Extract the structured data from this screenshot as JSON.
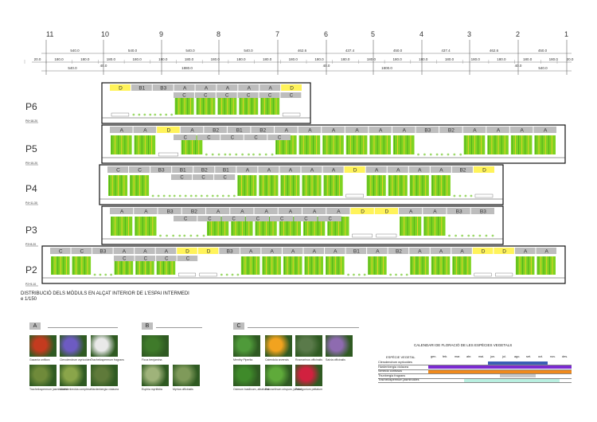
{
  "axes": [
    "11",
    "10",
    "9",
    "8",
    "7",
    "6",
    "5",
    "4",
    "3",
    "2",
    "1"
  ],
  "dims_row1": [
    "540.0",
    "540.0",
    "540.0",
    "540.0",
    "462.6",
    "437.4",
    "450.0",
    "437.4",
    "462.6",
    "450.0"
  ],
  "dims_row2": [
    "20.0",
    "180.0",
    "180.0",
    "180.0",
    "180.0",
    "180.0",
    "180.0",
    "180.0",
    "180.0",
    "180.0",
    "180.0",
    "180.0",
    "180.0",
    "180.0",
    "180.0",
    "180.0",
    "180.0",
    "180.0",
    "180.0",
    "180.0",
    "180.0",
    "20.0"
  ],
  "dims_row3": [
    "540.0",
    "40.0",
    "1880.0",
    "40.0",
    "1800.0",
    "40.0",
    "540.0"
  ],
  "floors": [
    {
      "label": "P6",
      "level": "P6+18.20",
      "modules": [
        "D",
        "B1",
        "B3",
        "A",
        "A",
        "A",
        "A",
        "A",
        "D"
      ],
      "sub": [
        "C",
        "C",
        "C",
        "C",
        "C",
        "C"
      ]
    },
    {
      "label": "P5",
      "level": "P5+15.20",
      "modules": [
        "A",
        "A",
        "D",
        "A",
        "B2",
        "B1",
        "B2",
        "A",
        "A",
        "A",
        "A",
        "A",
        "A",
        "B3",
        "B2",
        "A",
        "A",
        "A",
        "A"
      ],
      "sub": [
        "C",
        "C",
        "C",
        "C",
        "C"
      ]
    },
    {
      "label": "P4",
      "level": "P4+11.30",
      "modules": [
        "C",
        "C",
        "B3",
        "B1",
        "B2",
        "B1",
        "A",
        "A",
        "A",
        "A",
        "A",
        "D",
        "A",
        "A",
        "A",
        "A",
        "B2",
        "D"
      ],
      "sub": [
        "C",
        "C",
        "C"
      ]
    },
    {
      "label": "P3",
      "level": "P3+8.20",
      "modules": [
        "A",
        "A",
        "B3",
        "B2",
        "A",
        "A",
        "A",
        "A",
        "A",
        "A",
        "D",
        "D",
        "A",
        "A",
        "B3",
        "B3"
      ],
      "sub": [
        "C",
        "C",
        "C",
        "C",
        "C",
        "C",
        "C"
      ]
    },
    {
      "label": "P2",
      "level": "P2+5.10",
      "modules": [
        "C",
        "C",
        "B3",
        "A",
        "A",
        "A",
        "D",
        "D",
        "B3",
        "A",
        "A",
        "A",
        "A",
        "A",
        "B1",
        "A",
        "B2",
        "A",
        "A",
        "A",
        "D",
        "D",
        "A",
        "A"
      ],
      "sub": [
        "C",
        "C",
        "C",
        "C"
      ]
    }
  ],
  "caption_line1": "DISTRIBUCIÓ DELS MÒDULS EN ALÇAT INTERIOR DE L'ESPAI INTERMEDI",
  "caption_line2": "e 1/150",
  "legend_groups": [
    {
      "letter": "A",
      "plants": [
        "Gazania uniflora",
        "Clerodendrum wyricoides",
        "Trachelospermum jasminoides",
        "Muehlenbeckia complexa",
        "Hardenbergia violacea",
        "Trachelospermum fragrans"
      ]
    },
    {
      "letter": "B",
      "plants": [
        "Ficus benjamina",
        "Euphia myrtifolia",
        "Myrtus officinalis"
      ]
    },
    {
      "letter": "C",
      "plants": [
        "Menthy Piperita",
        "Calendula arvensis",
        "Rosmarinus officinalis",
        "Salvia officinalis",
        "Ocimum basilicum, albahaca",
        "Petroselinum crispum, julivert",
        "Pelargonium peltatum"
      ]
    }
  ],
  "calendar": {
    "title": "CALENDARI DE FLORACIÓ DE LES ESPÈCIES VEGETALS",
    "header": "ESPÈCIE VEGETAL",
    "months": [
      "gen.",
      "feb.",
      "mar.",
      "abr.",
      "mai.",
      "jun.",
      "jul.",
      "ago.",
      "set.",
      "oct.",
      "nov.",
      "des."
    ],
    "species": [
      {
        "name": "Clerodendrum wyricoides",
        "color": "#3a5fb5",
        "start": 5,
        "end": 10
      },
      {
        "name": "Hardenbergia violacea",
        "color": "#7a2ad1",
        "start": 0,
        "end": 12
      },
      {
        "name": "Senecio confusus",
        "color": "#f08a1c",
        "start": 0,
        "end": 12
      },
      {
        "name": "Thunbergia fragrans",
        "color": "#c8c8c8",
        "start": 6,
        "end": 9
      },
      {
        "name": "Trachelospermum jasminoides",
        "color": "#b9efe0",
        "start": 3,
        "end": 11
      }
    ]
  },
  "colors": {
    "green": "#7ed321",
    "green_dark": "#4caf1f",
    "grey_box": "#bdbdbd",
    "yellow_box": "#fff35a"
  }
}
